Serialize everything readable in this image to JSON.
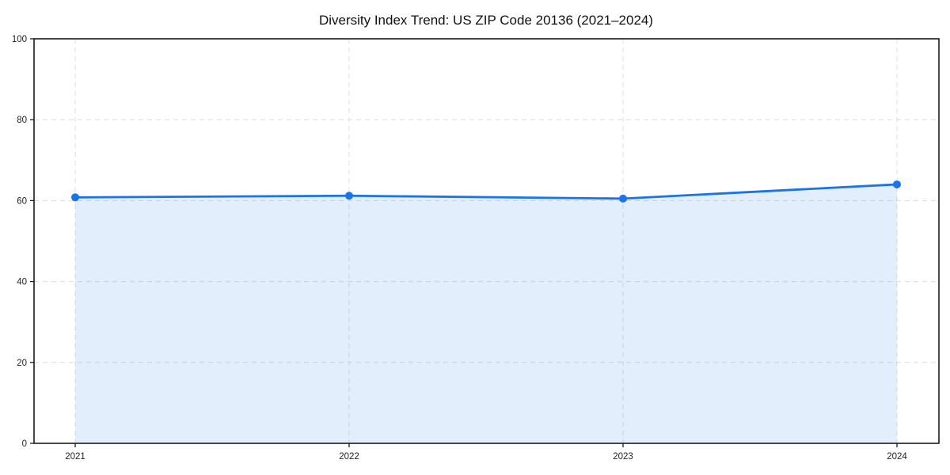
{
  "title": "Diversity Index Trend: US ZIP Code 20136 (2021–2024)",
  "colors": {
    "line": "#1a73e8",
    "marker": "#1a73e8",
    "area_fill": "#1a73e8",
    "area_fill_opacity": "0.12",
    "grid": "#dcdcdc",
    "spine": "#1a1a1a",
    "tick_label": "#222222",
    "background": "#ffffff"
  },
  "chart_data": {
    "type": "line",
    "title": "Diversity Index Trend: US ZIP Code 20136 (2021–2024)",
    "x": [
      2021,
      2022,
      2023,
      2024
    ],
    "categories": [
      "2021",
      "2022",
      "2023",
      "2024"
    ],
    "series": [
      {
        "name": "Diversity Index",
        "values": [
          60.8,
          61.2,
          60.5,
          64.0
        ]
      }
    ],
    "xlabel": "",
    "ylabel": "",
    "ylim": [
      0,
      100
    ],
    "yticks": [
      0,
      20,
      40,
      60,
      80,
      100
    ],
    "xticks": [
      "2021",
      "2022",
      "2023",
      "2024"
    ],
    "grid": true,
    "grid_style": "dashed",
    "legend_position": "none",
    "area_fill": true,
    "markers": true,
    "marker_style": "circle"
  }
}
